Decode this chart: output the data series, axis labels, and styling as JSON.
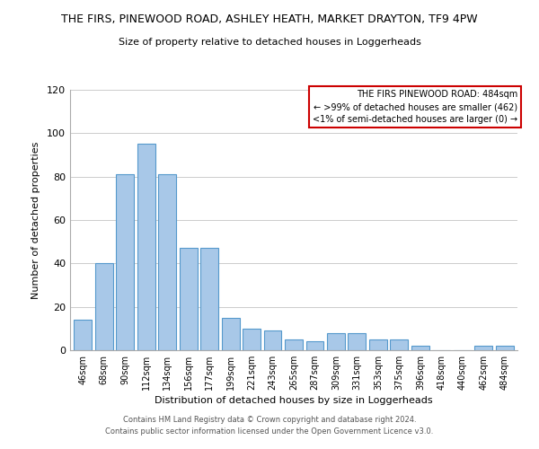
{
  "title": "THE FIRS, PINEWOOD ROAD, ASHLEY HEATH, MARKET DRAYTON, TF9 4PW",
  "subtitle": "Size of property relative to detached houses in Loggerheads",
  "xlabel": "Distribution of detached houses by size in Loggerheads",
  "ylabel": "Number of detached properties",
  "bar_color": "#a8c8e8",
  "bar_edge_color": "#5599cc",
  "categories": [
    "46sqm",
    "68sqm",
    "90sqm",
    "112sqm",
    "134sqm",
    "156sqm",
    "177sqm",
    "199sqm",
    "221sqm",
    "243sqm",
    "265sqm",
    "287sqm",
    "309sqm",
    "331sqm",
    "353sqm",
    "375sqm",
    "396sqm",
    "418sqm",
    "440sqm",
    "462sqm",
    "484sqm"
  ],
  "values": [
    14,
    40,
    81,
    95,
    81,
    47,
    47,
    15,
    10,
    9,
    5,
    4,
    8,
    8,
    5,
    5,
    2,
    0,
    0,
    2,
    2
  ],
  "ylim": [
    0,
    120
  ],
  "yticks": [
    0,
    20,
    40,
    60,
    80,
    100,
    120
  ],
  "annotation_box_color": "#cc0000",
  "annotation_lines": [
    "THE FIRS PINEWOOD ROAD: 484sqm",
    "← >99% of detached houses are smaller (462)",
    "<1% of semi-detached houses are larger (0) →"
  ],
  "footer_lines": [
    "Contains HM Land Registry data © Crown copyright and database right 2024.",
    "Contains public sector information licensed under the Open Government Licence v3.0."
  ],
  "grid_color": "#cccccc",
  "background_color": "#ffffff"
}
